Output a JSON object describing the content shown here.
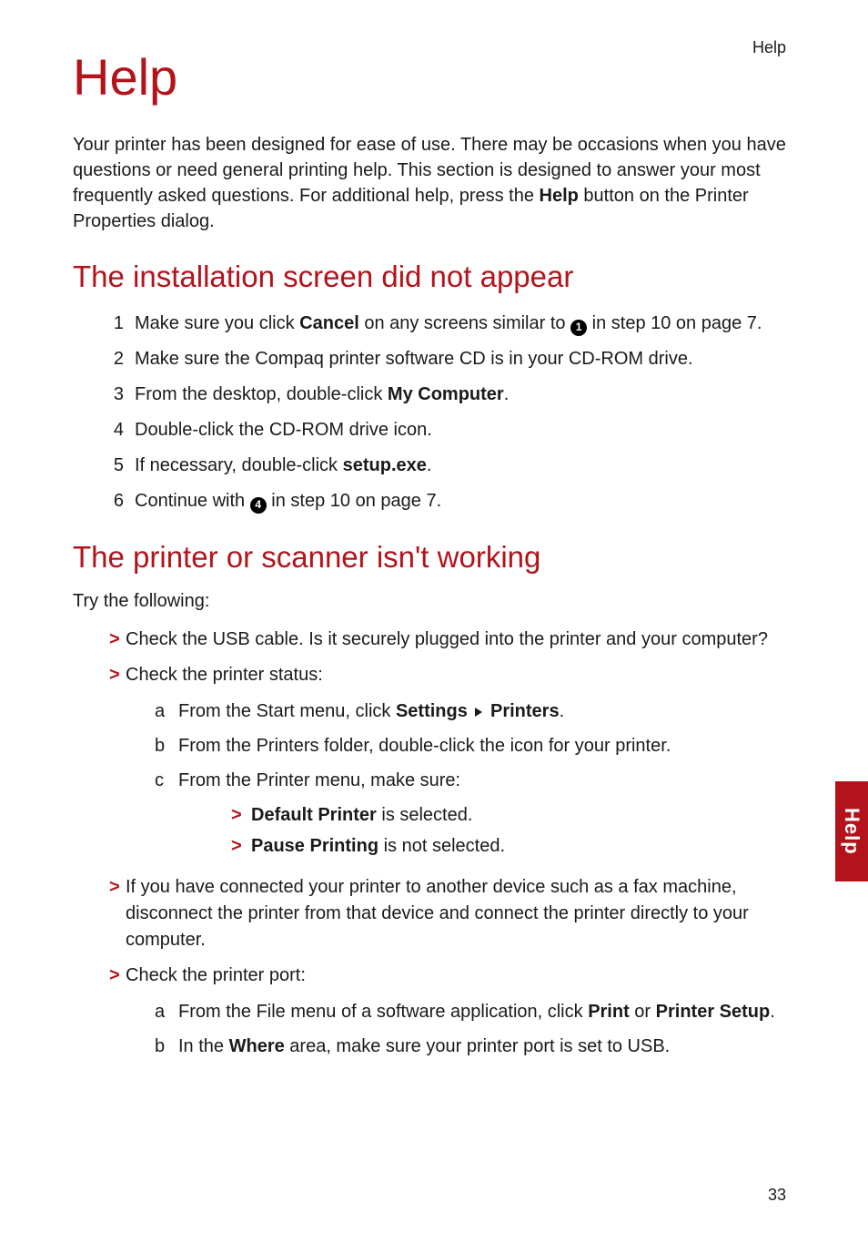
{
  "colors": {
    "accent": "#b3131b",
    "text": "#1a1a1a",
    "bg": "#ffffff"
  },
  "fontsizes": {
    "title": 56,
    "section": 33,
    "body": 20,
    "small": 18
  },
  "header": {
    "running": "Help"
  },
  "title": "Help",
  "intro": {
    "pre": "Your printer has been designed for ease of use. There may be occasions when you have questions or need general printing help. This section is designed to answer your most frequently asked questions. For additional help, press the ",
    "bold": "Help",
    "post": " button on the Printer Properties dialog."
  },
  "section1": {
    "heading": "The installation screen did not appear",
    "items": [
      {
        "n": "1",
        "pre": "Make sure you click ",
        "b1": "Cancel",
        "mid": " on any screens similar to ",
        "circ": "1",
        "post": " in step 10 on page 7."
      },
      {
        "n": "2",
        "text": "Make sure the Compaq printer software CD is in your CD-ROM drive."
      },
      {
        "n": "3",
        "pre": "From the desktop, double-click ",
        "b1": "My Computer",
        "post": "."
      },
      {
        "n": "4",
        "text": "Double-click the CD-ROM drive icon."
      },
      {
        "n": "5",
        "pre": "If necessary, double-click ",
        "b1": "setup.exe",
        "post": "."
      },
      {
        "n": "6",
        "pre": "Continue with ",
        "circ": "4",
        "post": " in step 10 on page 7."
      }
    ]
  },
  "section2": {
    "heading": "The printer or scanner isn't working",
    "try": "Try the following:",
    "b1": {
      "text": "Check the USB cable. Is it securely plugged into the printer and your computer?"
    },
    "b2": {
      "text": "Check the printer status:",
      "a": {
        "pre": "From the Start menu, click ",
        "b1": "Settings",
        "b2": "Printers",
        "post": "."
      },
      "b": {
        "text": "From the Printers folder, double-click the icon for your printer."
      },
      "c": {
        "text": "From the Printer menu, make sure:",
        "i1": {
          "b": "Default Printer",
          "post": " is selected."
        },
        "i2": {
          "b": "Pause Printing",
          "post": " is not selected."
        }
      }
    },
    "b3": {
      "text": "If you have connected your printer to another device such as a fax machine, disconnect the printer from that device and connect the printer directly to your computer."
    },
    "b4": {
      "text": "Check the printer port:",
      "a": {
        "pre": "From the File menu of a software application, click ",
        "b1": "Print",
        "mid": " or ",
        "b2": "Printer Setup",
        "post": "."
      },
      "b": {
        "pre": "In the ",
        "b1": "Where",
        "post": " area, make sure your printer port is set to USB."
      }
    }
  },
  "sidetab": "Help",
  "page_number": "33"
}
